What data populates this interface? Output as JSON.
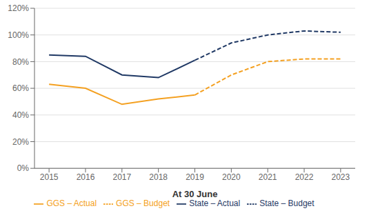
{
  "chart_data": {
    "type": "line",
    "x_label": "At 30 June",
    "x": [
      2015,
      2016,
      2017,
      2018,
      2019,
      2020,
      2021,
      2022,
      2023
    ],
    "series": [
      {
        "name": "State – Actual",
        "color": "#1F3864",
        "line_style": "solid",
        "values": [
          85,
          84,
          70,
          68,
          81,
          null,
          null,
          null,
          null
        ]
      },
      {
        "name": "State – Budget",
        "color": "#1F3864",
        "line_style": "dashed",
        "values": [
          null,
          null,
          null,
          null,
          81,
          94,
          100,
          103,
          102
        ]
      },
      {
        "name": "GGS – Actual",
        "color": "#F4A020",
        "line_style": "solid",
        "values": [
          63,
          60,
          48,
          52,
          55,
          null,
          null,
          null,
          null
        ]
      },
      {
        "name": "GGS – Budget",
        "color": "#F4A020",
        "line_style": "dashed",
        "values": [
          null,
          null,
          null,
          null,
          55,
          70,
          80,
          82,
          82
        ]
      }
    ],
    "xlim": [
      2014.6,
      2023.4
    ],
    "xticks": [
      2015,
      2016,
      2017,
      2018,
      2019,
      2020,
      2021,
      2022,
      2023
    ],
    "ylim": [
      0,
      120
    ],
    "yticks": [
      {
        "value": 0,
        "label": "0%"
      },
      {
        "value": 20,
        "label": "20%"
      },
      {
        "value": 40,
        "label": "40%"
      },
      {
        "value": 60,
        "label": "60%"
      },
      {
        "value": 80,
        "label": "80%"
      },
      {
        "value": 100,
        "label": "100%"
      },
      {
        "value": 120,
        "label": "120%"
      }
    ],
    "grid": true,
    "legend": "bottom"
  }
}
